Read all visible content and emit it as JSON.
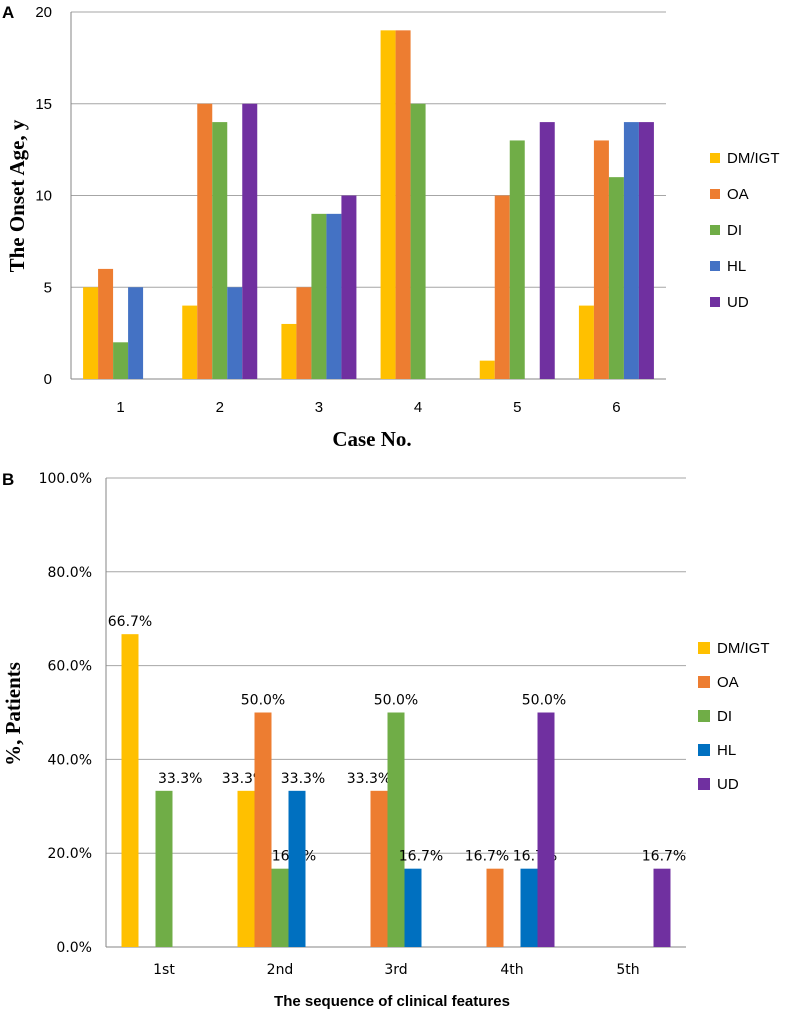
{
  "chart_data": [
    {
      "panel": "A",
      "type": "bar",
      "title": "",
      "xlabel": "Case No.",
      "ylabel": "The Onset Age, y",
      "categories": [
        "1",
        "2",
        "3",
        "4",
        "5",
        "6"
      ],
      "ylim": [
        0,
        20
      ],
      "yticks": [
        "0",
        "5",
        "10",
        "15",
        "20"
      ],
      "ytick_values": [
        0,
        5,
        10,
        15,
        20
      ],
      "grid": true,
      "legend_position": "right",
      "series": [
        {
          "name": "DM/IGT",
          "color": "#ffc000",
          "values": [
            5,
            4,
            3,
            19,
            1,
            4
          ]
        },
        {
          "name": "OA",
          "color": "#ed7d31",
          "values": [
            6,
            15,
            5,
            19,
            10,
            13
          ]
        },
        {
          "name": "DI",
          "color": "#70ad47",
          "values": [
            2,
            14,
            9,
            15,
            13,
            11
          ]
        },
        {
          "name": "HL",
          "color": "#4472c4",
          "values": [
            5,
            5,
            9,
            null,
            null,
            14
          ]
        },
        {
          "name": "UD",
          "color": "#7030a0",
          "values": [
            null,
            15,
            10,
            null,
            14,
            14
          ]
        }
      ]
    },
    {
      "panel": "B",
      "type": "bar",
      "title": "",
      "xlabel": "The sequence of clinical features",
      "ylabel": "%, Patients",
      "categories": [
        "1st",
        "2nd",
        "3rd",
        "4th",
        "5th"
      ],
      "ylim": [
        0,
        100
      ],
      "yticks": [
        "0.0%",
        "20.0%",
        "40.0%",
        "60.0%",
        "80.0%",
        "100.0%"
      ],
      "ytick_values": [
        0,
        20,
        40,
        60,
        80,
        100
      ],
      "grid": true,
      "legend_position": "right",
      "series": [
        {
          "name": "DM/IGT",
          "color": "#ffc000",
          "values": [
            66.7,
            33.3,
            null,
            null,
            null
          ],
          "labels": [
            "66.7%",
            "33.3%",
            "",
            "",
            ""
          ]
        },
        {
          "name": "OA",
          "color": "#ed7d31",
          "values": [
            null,
            50.0,
            33.3,
            16.7,
            null
          ],
          "labels": [
            "",
            "50.0%",
            "33.3%",
            "16.7%",
            ""
          ]
        },
        {
          "name": "DI",
          "color": "#70ad47",
          "values": [
            33.3,
            16.7,
            50.0,
            null,
            null
          ],
          "labels": [
            "33.3%",
            "16.7%",
            "50.0%",
            "",
            ""
          ]
        },
        {
          "name": "HL",
          "color": "#0070c0",
          "values": [
            null,
            33.3,
            16.7,
            16.7,
            null
          ],
          "labels": [
            "",
            "33.3%",
            "16.7%",
            "16.7%",
            ""
          ]
        },
        {
          "name": "UD",
          "color": "#7030a0",
          "values": [
            null,
            null,
            null,
            50.0,
            16.7
          ],
          "labels": [
            "",
            "",
            "",
            "50.0%",
            "16.7%"
          ]
        }
      ]
    }
  ]
}
